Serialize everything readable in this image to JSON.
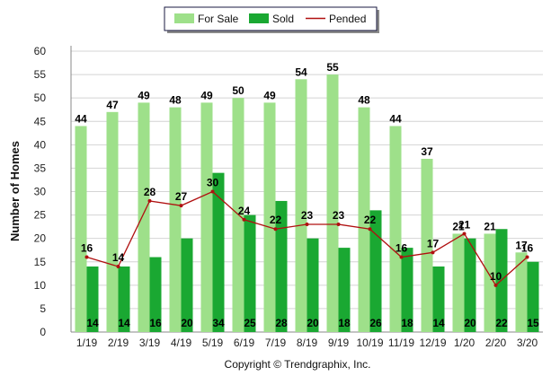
{
  "chart_data": {
    "type": "bar",
    "title": "",
    "xlabel": "",
    "ylabel": "Number of Homes",
    "ylim": [
      0,
      60
    ],
    "y_ticks": [
      0,
      5,
      10,
      15,
      20,
      25,
      30,
      35,
      40,
      45,
      50,
      55,
      60
    ],
    "grid": true,
    "legend_position": "top-center",
    "categories": [
      "1/19",
      "2/19",
      "3/19",
      "4/19",
      "5/19",
      "6/19",
      "7/19",
      "8/19",
      "9/19",
      "10/19",
      "11/19",
      "12/19",
      "1/20",
      "2/20",
      "3/20"
    ],
    "series": [
      {
        "name": "For Sale",
        "kind": "bar",
        "color": "#9ee08a",
        "values": [
          44,
          47,
          49,
          48,
          49,
          50,
          49,
          54,
          55,
          48,
          44,
          37,
          21,
          21,
          17
        ]
      },
      {
        "name": "Sold",
        "kind": "bar",
        "color": "#1aa832",
        "values": [
          14,
          14,
          16,
          20,
          34,
          25,
          28,
          20,
          18,
          26,
          18,
          14,
          20,
          22,
          15
        ]
      },
      {
        "name": "Pended",
        "kind": "line",
        "color": "#b01010",
        "values": [
          16,
          14,
          28,
          27,
          30,
          24,
          22,
          23,
          23,
          22,
          16,
          17,
          21,
          10,
          16
        ]
      }
    ],
    "annotation": "Copyright © Trendgraphix, Inc."
  }
}
